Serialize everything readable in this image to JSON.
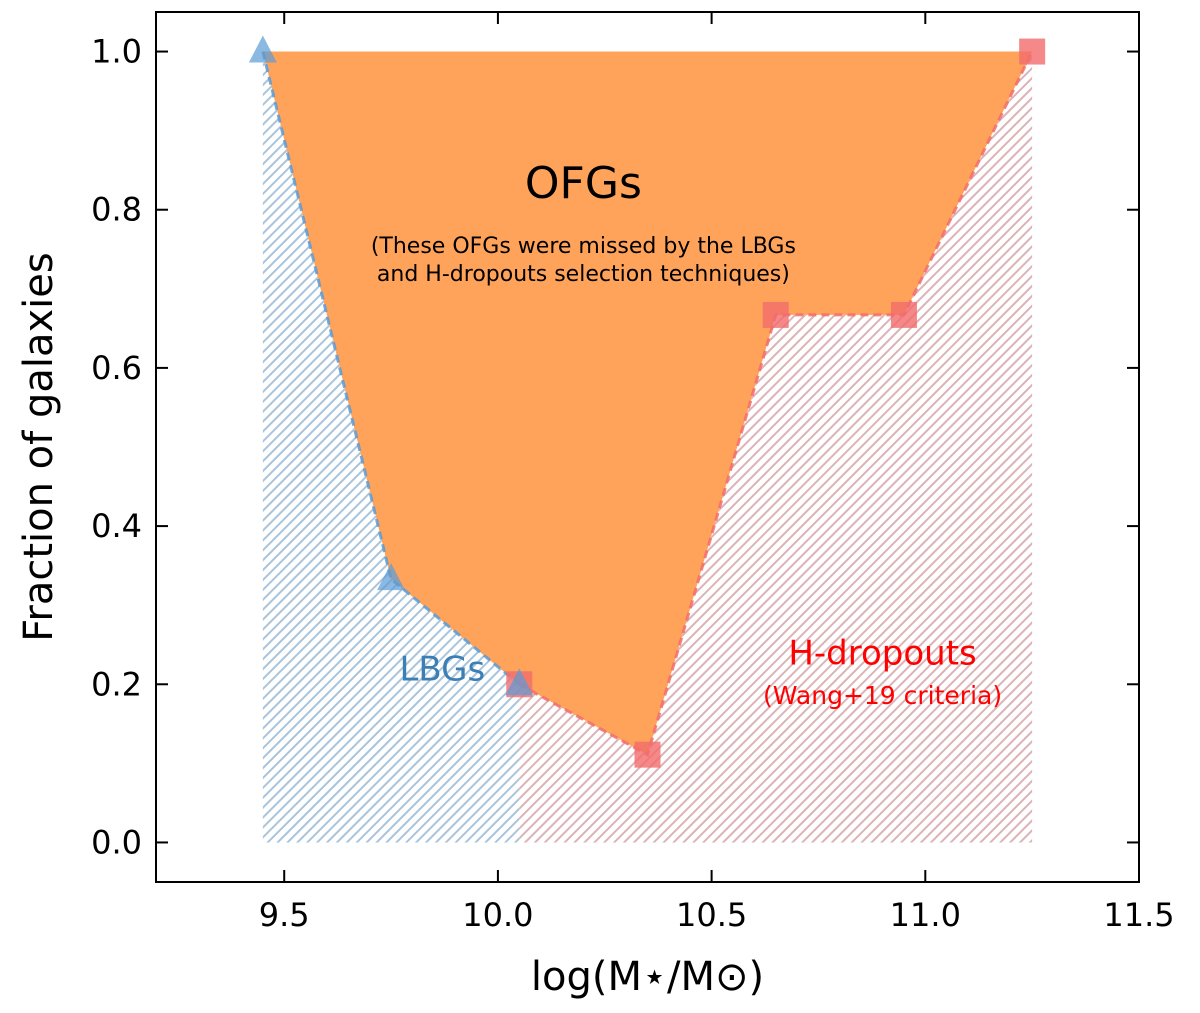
{
  "chart_data": {
    "type": "area",
    "xlabel": "log(M⋆/M⊙)",
    "ylabel": "Fraction of galaxies",
    "xlim": [
      9.2,
      11.5
    ],
    "ylim": [
      -0.05,
      1.05
    ],
    "xticks": [
      9.5,
      10.0,
      10.5,
      11.0,
      11.5
    ],
    "xtick_labels": [
      "9.5",
      "10.0",
      "10.5",
      "11.0",
      "11.5"
    ],
    "yticks": [
      0.0,
      0.2,
      0.4,
      0.6,
      0.8,
      1.0
    ],
    "ytick_labels": [
      "0.0",
      "0.2",
      "0.4",
      "0.6",
      "0.8",
      "1.0"
    ],
    "grid": false,
    "series": [
      {
        "name": "LBGs",
        "marker": "triangle",
        "color": "#5b9bd5",
        "x": [
          9.45,
          9.75,
          10.05
        ],
        "y": [
          1.0,
          0.333,
          0.2
        ]
      },
      {
        "name": "H-dropouts",
        "marker": "square",
        "color": "#f36b6b",
        "x": [
          10.05,
          10.35,
          10.65,
          10.95,
          11.25
        ],
        "y": [
          0.2,
          0.111,
          0.667,
          0.667,
          1.0
        ]
      }
    ],
    "fills": {
      "ofg_color": "#ffa35a",
      "lbg_hatch_color": "#a9c4db",
      "hdrop_hatch_color": "#dcb3b6"
    },
    "annotations": {
      "ofg_title": "OFGs",
      "ofg_note_line1": "(These OFGs were missed by the LBGs",
      "ofg_note_line2": "and H-dropouts selection techniques)",
      "lbg_label": "LBGs",
      "lbg_label_color": "#3b7fb5",
      "hdrop_label": "H-dropouts",
      "hdrop_note": "(Wang+19 criteria)",
      "hdrop_label_color": "#ff0000"
    }
  }
}
